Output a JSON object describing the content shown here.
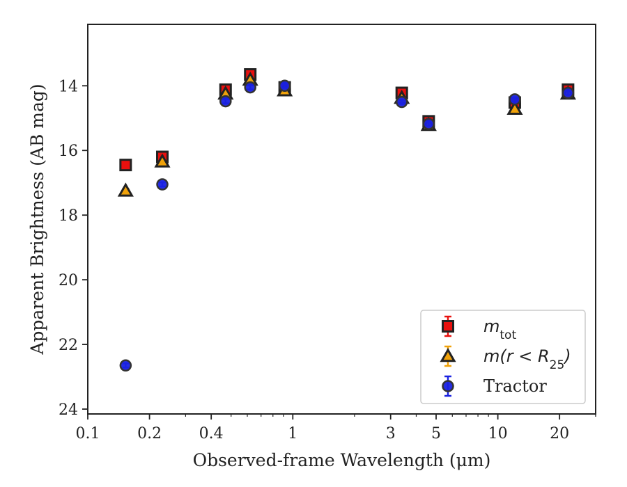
{
  "chart_data": {
    "type": "scatter",
    "title": "",
    "xlabel": "Observed-frame Wavelength (μm)",
    "ylabel": "Apparent Brightness (AB mag)",
    "xscale": "log",
    "xlim": [
      0.1,
      30
    ],
    "ylim": [
      24.15,
      12.1
    ],
    "y_inverted": true,
    "grid": false,
    "legend_position": "lower-right",
    "x_ticks": [
      0.1,
      0.2,
      0.4,
      1,
      3,
      5,
      10,
      20
    ],
    "x_tick_labels": [
      "0.1",
      "0.2",
      "0.4",
      "1",
      "3",
      "5",
      "10",
      "20"
    ],
    "y_ticks": [
      14,
      16,
      18,
      20,
      22,
      24
    ],
    "y_tick_labels": [
      "14",
      "16",
      "18",
      "20",
      "22",
      "24"
    ],
    "series": [
      {
        "name": "m_tot",
        "legend_main": "m",
        "legend_sub": "tot",
        "marker": "square",
        "color": "#e8100e",
        "edge_color": "#222222",
        "points": [
          {
            "x": 0.153,
            "y": 16.45
          },
          {
            "x": 0.231,
            "y": 16.2
          },
          {
            "x": 0.47,
            "y": 14.12
          },
          {
            "x": 0.62,
            "y": 13.65
          },
          {
            "x": 0.913,
            "y": 14.05
          },
          {
            "x": 3.4,
            "y": 14.22
          },
          {
            "x": 4.6,
            "y": 15.1
          },
          {
            "x": 12.1,
            "y": 14.52
          },
          {
            "x": 22.0,
            "y": 14.12
          }
        ]
      },
      {
        "name": "m(r < R25)",
        "legend_main": "m(r < R",
        "legend_sub": "25",
        "legend_tail": ")",
        "marker": "triangle",
        "color": "#f0a20a",
        "edge_color": "#222222",
        "points": [
          {
            "x": 0.153,
            "y": 17.25
          },
          {
            "x": 0.231,
            "y": 16.35
          },
          {
            "x": 0.47,
            "y": 14.25
          },
          {
            "x": 0.62,
            "y": 13.82
          },
          {
            "x": 0.913,
            "y": 14.15
          },
          {
            "x": 3.4,
            "y": 14.38
          },
          {
            "x": 4.6,
            "y": 15.22
          },
          {
            "x": 12.1,
            "y": 14.72
          },
          {
            "x": 22.0,
            "y": 14.25
          }
        ]
      },
      {
        "name": "Tractor",
        "legend_main": "Tractor",
        "marker": "circle",
        "color": "#1a22e0",
        "edge_color": "#333333",
        "points": [
          {
            "x": 0.153,
            "y": 22.65
          },
          {
            "x": 0.231,
            "y": 17.05
          },
          {
            "x": 0.47,
            "y": 14.48
          },
          {
            "x": 0.62,
            "y": 14.05
          },
          {
            "x": 0.913,
            "y": 14.0
          },
          {
            "x": 3.4,
            "y": 14.5
          },
          {
            "x": 4.6,
            "y": 15.18
          },
          {
            "x": 12.1,
            "y": 14.42
          },
          {
            "x": 22.0,
            "y": 14.22
          }
        ]
      }
    ]
  }
}
